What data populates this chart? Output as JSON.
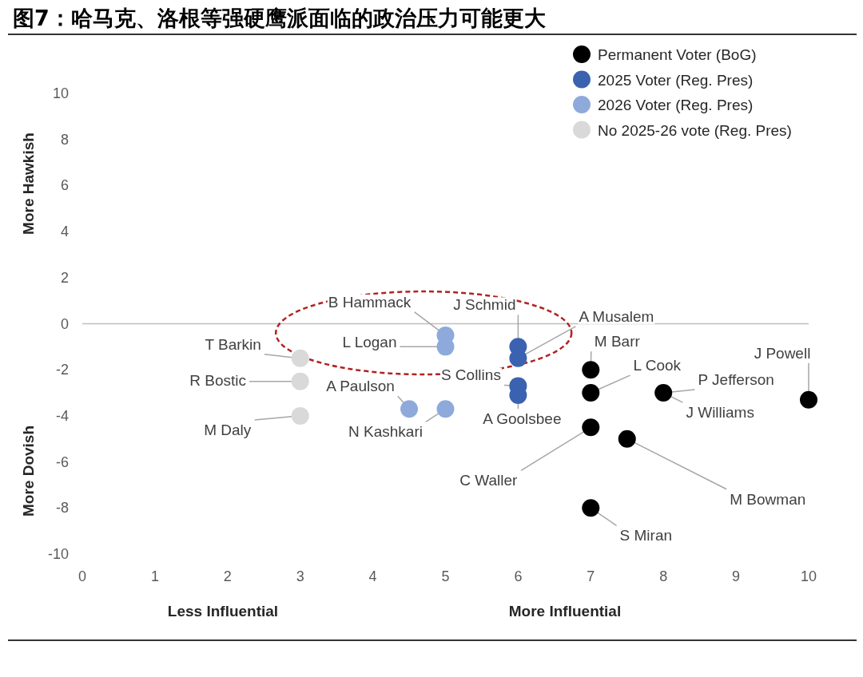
{
  "chart_data": {
    "type": "scatter",
    "title": "图7：哈马克、洛根等强硬鹰派面临的政治压力可能更大",
    "xlim": [
      0,
      10
    ],
    "ylim": [
      -10,
      10
    ],
    "xticks": [
      0,
      1,
      2,
      3,
      4,
      5,
      6,
      7,
      8,
      9,
      10
    ],
    "yticks": [
      -10,
      -8,
      -6,
      -4,
      -2,
      0,
      2,
      4,
      6,
      8,
      10
    ],
    "grid": false,
    "legend": "top right",
    "marker": "circle",
    "ref_lines": [
      {
        "axis": "y",
        "value": 0,
        "color": "#bfbfbf"
      }
    ],
    "series": [
      {
        "name": "Permanent Voter (BoG)",
        "color": "#000000",
        "x": [
          7,
          7,
          7,
          7,
          7.5,
          8,
          10
        ],
        "values": [
          -2,
          -3,
          -4.5,
          -8,
          -5,
          -3,
          -3.3
        ]
      },
      {
        "name": "2025 Voter (Reg. Pres)",
        "color": "#3a62b0",
        "x": [
          6,
          6,
          6,
          6
        ],
        "values": [
          -1,
          -1.5,
          -2.7,
          -3.1
        ]
      },
      {
        "name": "2026 Voter (Reg. Pres)",
        "color": "#8eaadb",
        "x": [
          5,
          5,
          4.5,
          5
        ],
        "values": [
          -0.5,
          -1,
          -3.7,
          -3.7
        ]
      },
      {
        "name": "No 2025-26 vote (Reg. Pres)",
        "color": "#d9d9d9",
        "x": [
          3,
          3,
          3
        ],
        "values": [
          -1.5,
          -2.5,
          -4
        ]
      }
    ],
    "annotations": [
      "More Hawkish",
      "More Dovish",
      "Less Influential",
      "More Influential",
      {
        "text": "B Hammack",
        "x": 5,
        "y": -0.5
      },
      {
        "text": "L Logan",
        "x": 5,
        "y": -1
      },
      {
        "text": "J Schmid",
        "x": 6,
        "y": -1
      },
      {
        "text": "A Musalem",
        "x": 6,
        "y": -1.5
      },
      {
        "text": "M Barr",
        "x": 7,
        "y": -2
      },
      {
        "text": "L Cook",
        "x": 7,
        "y": -3
      },
      {
        "text": "S Collins",
        "x": 6,
        "y": -2.7
      },
      {
        "text": "A Goolsbee",
        "x": 6,
        "y": -3.1
      },
      {
        "text": "C Waller",
        "x": 7,
        "y": -4.5
      },
      {
        "text": "S Miran",
        "x": 7,
        "y": -8
      },
      {
        "text": "M Bowman",
        "x": 7.5,
        "y": -5
      },
      {
        "text": "P Jefferson",
        "x": 8,
        "y": -3
      },
      {
        "text": "J Williams",
        "x": 8,
        "y": -3
      },
      {
        "text": "J Powell",
        "x": 10,
        "y": -3.3
      },
      {
        "text": "T Barkin",
        "x": 3,
        "y": -1.5
      },
      {
        "text": "R Bostic",
        "x": 3,
        "y": -2.5
      },
      {
        "text": "A Paulson",
        "x": 4.5,
        "y": -3.7
      },
      {
        "text": "N Kashkari",
        "x": 5,
        "y": -3.7
      },
      {
        "text": "M Daly",
        "x": 3,
        "y": -4
      }
    ]
  }
}
